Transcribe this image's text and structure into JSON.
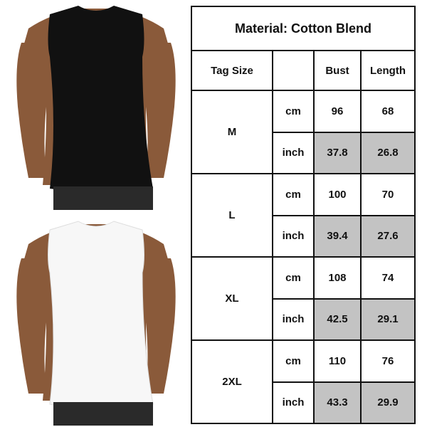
{
  "title": "Material: Cotton Blend",
  "headers": {
    "tag_size": "Tag Size",
    "unit": "",
    "bust": "Bust",
    "length": "Length"
  },
  "rows": [
    {
      "size": "M",
      "cm": {
        "unit": "cm",
        "bust": "96",
        "length": "68"
      },
      "inch": {
        "unit": "inch",
        "bust": "37.8",
        "length": "26.8"
      }
    },
    {
      "size": "L",
      "cm": {
        "unit": "cm",
        "bust": "100",
        "length": "70"
      },
      "inch": {
        "unit": "inch",
        "bust": "39.4",
        "length": "27.6"
      }
    },
    {
      "size": "XL",
      "cm": {
        "unit": "cm",
        "bust": "108",
        "length": "74"
      },
      "inch": {
        "unit": "inch",
        "bust": "42.5",
        "length": "29.1"
      }
    },
    {
      "size": "2XL",
      "cm": {
        "unit": "cm",
        "bust": "110",
        "length": "76"
      },
      "inch": {
        "unit": "inch",
        "bust": "43.3",
        "length": "29.9"
      }
    }
  ],
  "colors": {
    "inch_cell_bg": "#c3c3c3",
    "border": "#111111",
    "black_tank": "#111111",
    "white_tank": "#f7f7f7",
    "skin": "#8a5a3a"
  },
  "photos": [
    {
      "subject": "black-tank-top"
    },
    {
      "subject": "white-tank-top"
    }
  ]
}
